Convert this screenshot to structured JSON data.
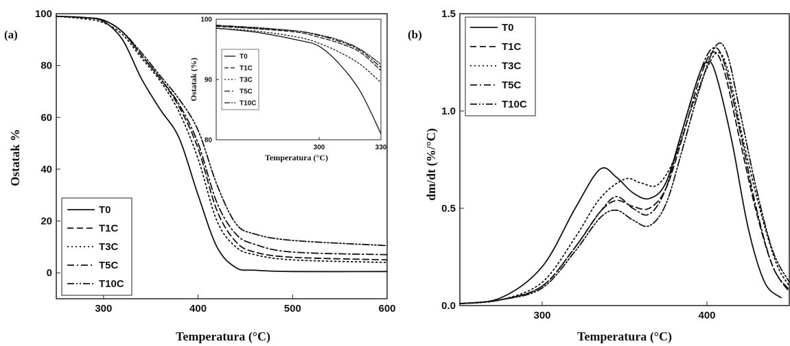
{
  "chart_data": [
    {
      "id": "a",
      "panel_label": "(a)",
      "type": "line",
      "xlabel": "Temperatura",
      "xunit": "(°C)",
      "ylabel": "Ostatak %",
      "xlim": [
        250,
        600
      ],
      "ylim": [
        -10,
        100
      ],
      "xticks": [
        "300",
        "400",
        "500",
        "600"
      ],
      "yticks": [
        "0",
        "20",
        "40",
        "60",
        "80",
        "100"
      ],
      "legend_position": "bottom-left",
      "series": [
        {
          "name": "T0",
          "dash": "",
          "points": [
            [
              250,
              99
            ],
            [
              280,
              98.5
            ],
            [
              300,
              97
            ],
            [
              320,
              90
            ],
            [
              340,
              75
            ],
            [
              360,
              63
            ],
            [
              380,
              52
            ],
            [
              400,
              30
            ],
            [
              420,
              10
            ],
            [
              440,
              2
            ],
            [
              460,
              1
            ],
            [
              500,
              0.5
            ],
            [
              600,
              0.5
            ]
          ]
        },
        {
          "name": "T1C",
          "dash": "9,5",
          "points": [
            [
              250,
              99
            ],
            [
              280,
              98.5
            ],
            [
              300,
              97.5
            ],
            [
              320,
              93
            ],
            [
              340,
              84
            ],
            [
              360,
              75
            ],
            [
              380,
              64
            ],
            [
              400,
              48
            ],
            [
              420,
              24
            ],
            [
              440,
              12
            ],
            [
              460,
              8
            ],
            [
              500,
              6
            ],
            [
              600,
              5
            ]
          ]
        },
        {
          "name": "T3C",
          "dash": "2,4",
          "points": [
            [
              250,
              99
            ],
            [
              280,
              98
            ],
            [
              300,
              96.5
            ],
            [
              320,
              92
            ],
            [
              340,
              83
            ],
            [
              360,
              74
            ],
            [
              380,
              62
            ],
            [
              400,
              44
            ],
            [
              420,
              20
            ],
            [
              440,
              10
            ],
            [
              460,
              7
            ],
            [
              500,
              5
            ],
            [
              600,
              4
            ]
          ]
        },
        {
          "name": "T5C",
          "dash": "10,4,2,4",
          "points": [
            [
              250,
              99
            ],
            [
              280,
              98.5
            ],
            [
              300,
              97.5
            ],
            [
              320,
              93
            ],
            [
              340,
              84
            ],
            [
              360,
              75
            ],
            [
              380,
              65
            ],
            [
              400,
              50
            ],
            [
              420,
              27
            ],
            [
              440,
              15
            ],
            [
              460,
              11
            ],
            [
              500,
              8
            ],
            [
              600,
              7
            ]
          ]
        },
        {
          "name": "T10C",
          "dash": "10,3,2,3,2,3",
          "points": [
            [
              250,
              99
            ],
            [
              280,
              98.5
            ],
            [
              300,
              97.5
            ],
            [
              320,
              93
            ],
            [
              340,
              85
            ],
            [
              360,
              76
            ],
            [
              380,
              67
            ],
            [
              400,
              55
            ],
            [
              420,
              34
            ],
            [
              440,
              19
            ],
            [
              460,
              15
            ],
            [
              500,
              12.5
            ],
            [
              600,
              10.5
            ]
          ]
        }
      ],
      "inset": {
        "type": "line",
        "xlabel": "Temperatura",
        "xunit": "(°C)",
        "ylabel": "Ostatak (%)",
        "xlim": [
          250,
          330
        ],
        "ylim": [
          80,
          100
        ],
        "xticks": [
          "300",
          "330"
        ],
        "yticks": [
          "80",
          "90",
          "100"
        ],
        "legend_position": "left",
        "series": [
          {
            "name": "T0",
            "dash": "",
            "points": [
              [
                250,
                98.5
              ],
              [
                270,
                97.8
              ],
              [
                290,
                96.5
              ],
              [
                300,
                95.5
              ],
              [
                310,
                92.5
              ],
              [
                320,
                88
              ],
              [
                330,
                81
              ]
            ]
          },
          {
            "name": "T1C",
            "dash": "6,3",
            "points": [
              [
                250,
                98.8
              ],
              [
                270,
                98.4
              ],
              [
                290,
                97.8
              ],
              [
                300,
                97
              ],
              [
                310,
                96
              ],
              [
                320,
                94.5
              ],
              [
                330,
                91.5
              ]
            ]
          },
          {
            "name": "T3C",
            "dash": "2,3",
            "points": [
              [
                250,
                98.5
              ],
              [
                270,
                98
              ],
              [
                290,
                97
              ],
              [
                300,
                96
              ],
              [
                310,
                94.5
              ],
              [
                320,
                92.5
              ],
              [
                330,
                89.5
              ]
            ]
          },
          {
            "name": "T5C",
            "dash": "8,3,2,3",
            "points": [
              [
                250,
                98.9
              ],
              [
                270,
                98.5
              ],
              [
                290,
                98
              ],
              [
                300,
                97.3
              ],
              [
                310,
                96.3
              ],
              [
                320,
                94.8
              ],
              [
                330,
                92
              ]
            ]
          },
          {
            "name": "T10C",
            "dash": "8,2,2,2,2,2",
            "points": [
              [
                250,
                99
              ],
              [
                270,
                98.6
              ],
              [
                290,
                98
              ],
              [
                300,
                97.4
              ],
              [
                310,
                96.5
              ],
              [
                320,
                95
              ],
              [
                330,
                92.5
              ]
            ]
          }
        ]
      }
    },
    {
      "id": "b",
      "panel_label": "(b)",
      "type": "line",
      "xlabel": "Temperatura",
      "xunit": "(°C)",
      "ylabel": "dm/dt (%/°C)",
      "xlim": [
        250,
        450
      ],
      "ylim": [
        0,
        1.5
      ],
      "xticks": [
        "300",
        "400"
      ],
      "yticks": [
        "0.0",
        "0.5",
        "1.0",
        "1.5"
      ],
      "legend_position": "top-left",
      "series": [
        {
          "name": "T0",
          "dash": "",
          "points": [
            [
              250,
              0.01
            ],
            [
              275,
              0.04
            ],
            [
              300,
              0.2
            ],
            [
              320,
              0.5
            ],
            [
              335,
              0.7
            ],
            [
              345,
              0.66
            ],
            [
              355,
              0.58
            ],
            [
              365,
              0.55
            ],
            [
              375,
              0.63
            ],
            [
              385,
              0.9
            ],
            [
              395,
              1.18
            ],
            [
              400,
              1.25
            ],
            [
              405,
              1.2
            ],
            [
              415,
              0.85
            ],
            [
              425,
              0.4
            ],
            [
              435,
              0.12
            ],
            [
              445,
              0.04
            ]
          ]
        },
        {
          "name": "T1C",
          "dash": "9,5",
          "points": [
            [
              250,
              0.01
            ],
            [
              275,
              0.03
            ],
            [
              300,
              0.1
            ],
            [
              320,
              0.3
            ],
            [
              335,
              0.48
            ],
            [
              345,
              0.54
            ],
            [
              355,
              0.51
            ],
            [
              365,
              0.5
            ],
            [
              375,
              0.6
            ],
            [
              385,
              0.86
            ],
            [
              395,
              1.15
            ],
            [
              403,
              1.3
            ],
            [
              410,
              1.22
            ],
            [
              420,
              0.85
            ],
            [
              430,
              0.48
            ],
            [
              440,
              0.2
            ],
            [
              450,
              0.07
            ]
          ]
        },
        {
          "name": "T3C",
          "dash": "2,4",
          "points": [
            [
              250,
              0.01
            ],
            [
              275,
              0.03
            ],
            [
              300,
              0.12
            ],
            [
              320,
              0.35
            ],
            [
              335,
              0.55
            ],
            [
              350,
              0.65
            ],
            [
              360,
              0.63
            ],
            [
              370,
              0.62
            ],
            [
              380,
              0.75
            ],
            [
              390,
              1.0
            ],
            [
              400,
              1.22
            ],
            [
              407,
              1.3
            ],
            [
              413,
              1.2
            ],
            [
              422,
              0.85
            ],
            [
              432,
              0.5
            ],
            [
              442,
              0.22
            ],
            [
              450,
              0.1
            ]
          ]
        },
        {
          "name": "T5C",
          "dash": "10,4,2,4",
          "points": [
            [
              250,
              0.01
            ],
            [
              275,
              0.03
            ],
            [
              300,
              0.1
            ],
            [
              320,
              0.3
            ],
            [
              335,
              0.48
            ],
            [
              345,
              0.56
            ],
            [
              355,
              0.5
            ],
            [
              365,
              0.47
            ],
            [
              375,
              0.6
            ],
            [
              385,
              0.9
            ],
            [
              395,
              1.18
            ],
            [
              403,
              1.32
            ],
            [
              410,
              1.26
            ],
            [
              420,
              0.9
            ],
            [
              430,
              0.5
            ],
            [
              440,
              0.2
            ],
            [
              450,
              0.08
            ]
          ]
        },
        {
          "name": "T10C",
          "dash": "10,3,2,3,2,3",
          "points": [
            [
              250,
              0.01
            ],
            [
              275,
              0.03
            ],
            [
              300,
              0.09
            ],
            [
              320,
              0.28
            ],
            [
              335,
              0.45
            ],
            [
              345,
              0.49
            ],
            [
              355,
              0.44
            ],
            [
              365,
              0.41
            ],
            [
              375,
              0.52
            ],
            [
              385,
              0.8
            ],
            [
              395,
              1.1
            ],
            [
              405,
              1.33
            ],
            [
              412,
              1.3
            ],
            [
              420,
              1.0
            ],
            [
              430,
              0.6
            ],
            [
              440,
              0.28
            ],
            [
              450,
              0.12
            ]
          ]
        }
      ]
    }
  ]
}
